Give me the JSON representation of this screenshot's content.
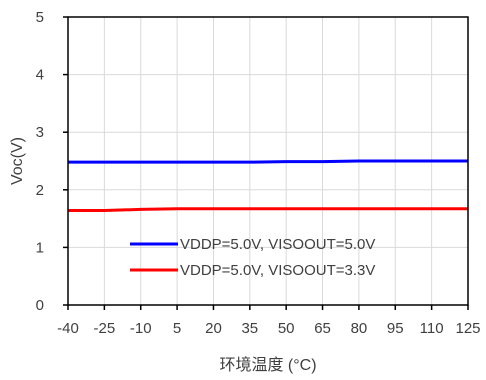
{
  "chart_data": {
    "type": "line",
    "title": "",
    "xlabel": "环境温度 (°C)",
    "ylabel": "Voc(V)",
    "x": [
      -40,
      -25,
      -10,
      5,
      20,
      35,
      50,
      65,
      80,
      95,
      110,
      125
    ],
    "x_tick_labels": [
      "-40",
      "-25",
      "-10",
      "5",
      "20",
      "35",
      "50",
      "65",
      "80",
      "95",
      "110",
      "125"
    ],
    "y_tick_labels": [
      "0",
      "1",
      "2",
      "3",
      "4",
      "5"
    ],
    "xlim": [
      -40,
      125
    ],
    "ylim": [
      0,
      5
    ],
    "grid": true,
    "legend_position": "bottom-left",
    "series": [
      {
        "name": "VDDP=5.0V, VISOOUT=5.0V",
        "color": "#0000FF",
        "values": [
          2.48,
          2.48,
          2.48,
          2.48,
          2.48,
          2.48,
          2.49,
          2.49,
          2.5,
          2.5,
          2.5,
          2.5
        ]
      },
      {
        "name": "VDDP=5.0V, VISOOUT=3.3V",
        "color": "#FF0000",
        "values": [
          1.64,
          1.64,
          1.66,
          1.67,
          1.67,
          1.67,
          1.67,
          1.67,
          1.67,
          1.67,
          1.67,
          1.67
        ]
      }
    ]
  }
}
